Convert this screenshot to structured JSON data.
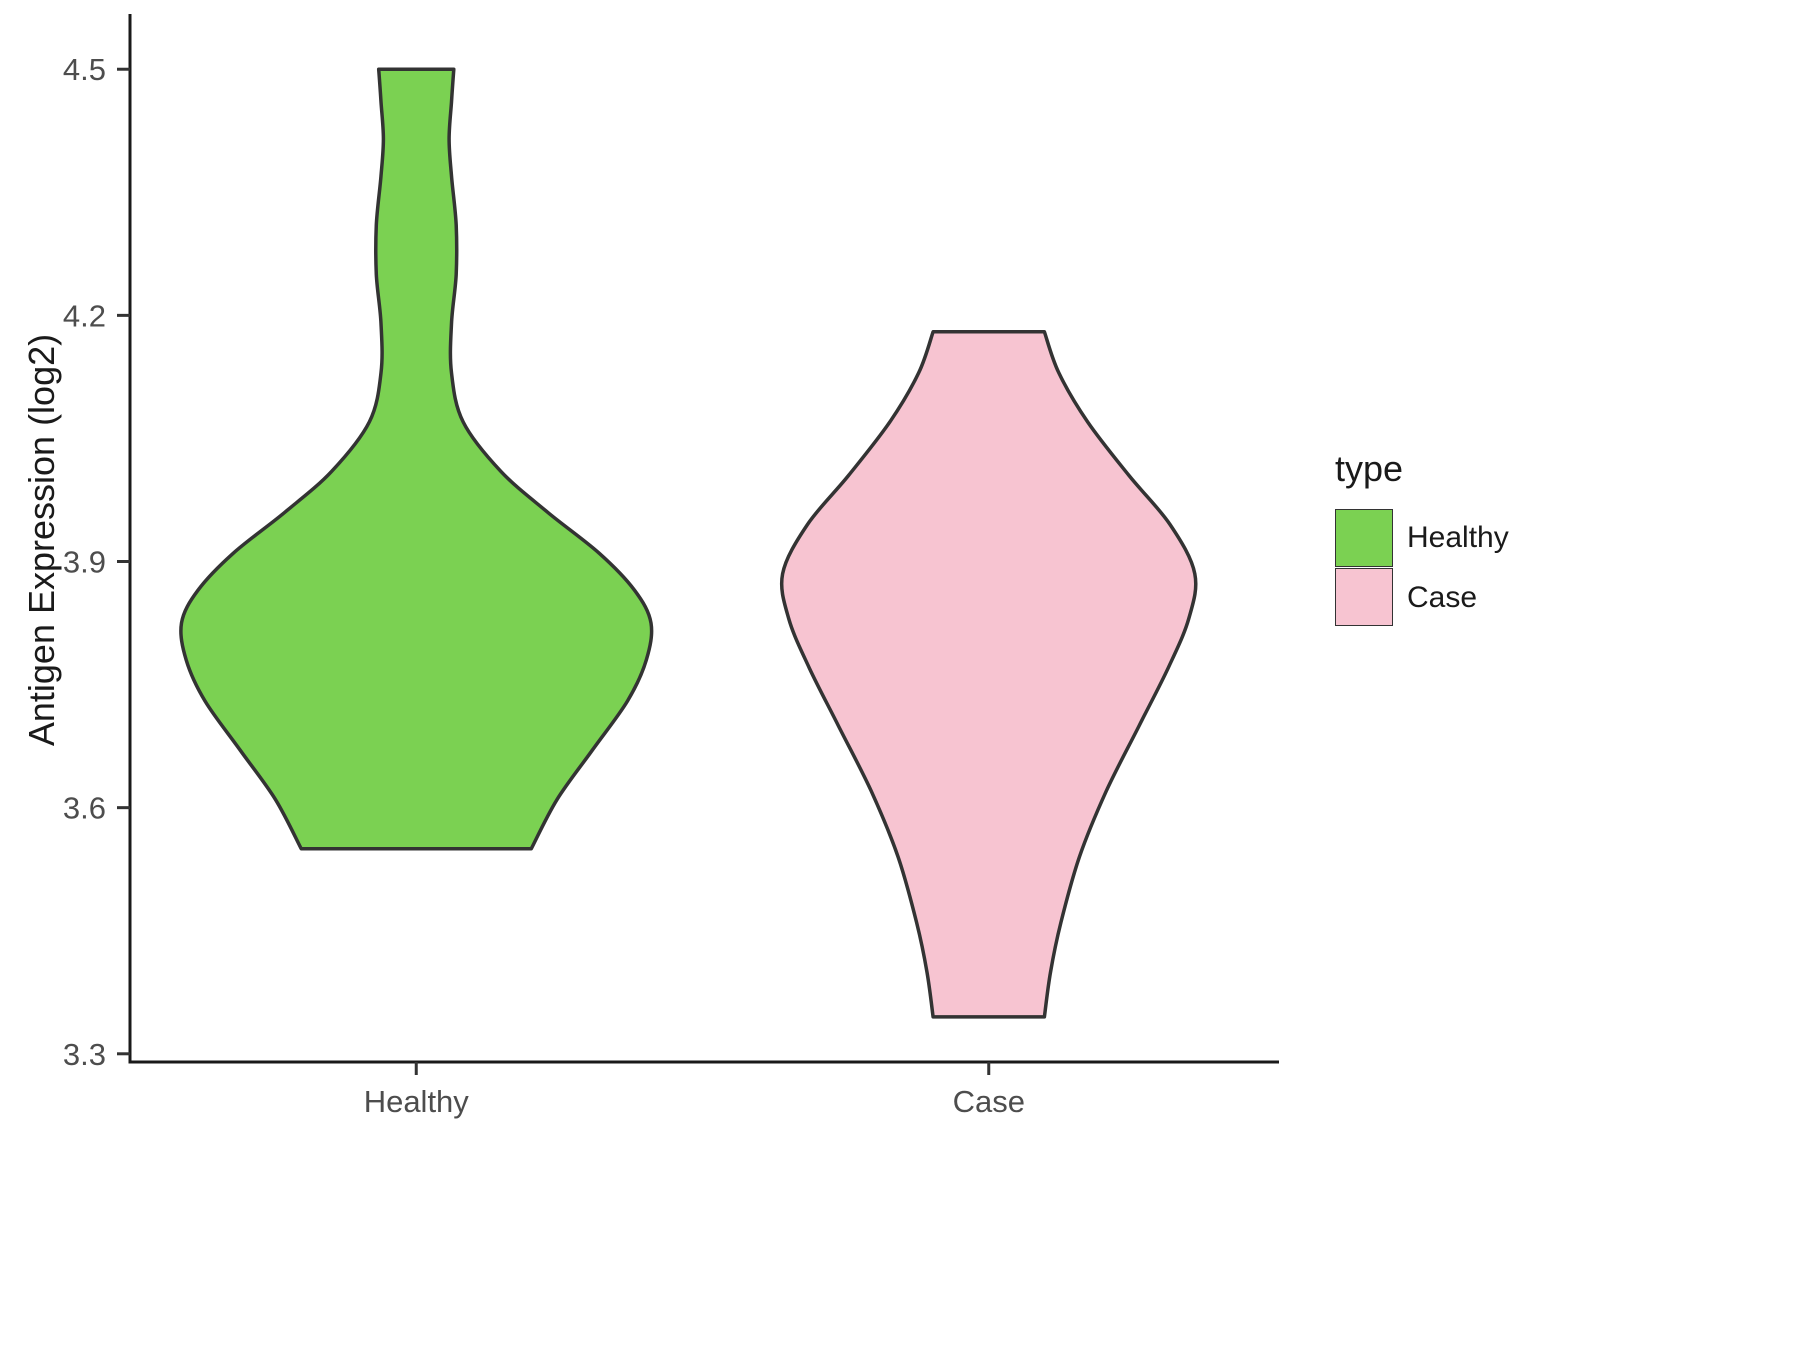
{
  "chart_data": {
    "type": "violin",
    "title": "",
    "xlabel": "",
    "ylabel": "Antigen Expression (log2)",
    "categories": [
      "Healthy",
      "Case"
    ],
    "y_ticks": [
      3.3,
      3.6,
      3.9,
      4.2,
      4.5
    ],
    "ylim": [
      3.29,
      4.56
    ],
    "grid": false,
    "legend": {
      "title": "type",
      "position": "right"
    },
    "axis_colors": {
      "line": "#1a1a1a",
      "tick_label": "#4d4d4d"
    },
    "series": [
      {
        "name": "Healthy",
        "color": "#7BD152",
        "outline": "#333333",
        "value_range": [
          3.55,
          4.5
        ],
        "max_halfwidth_frac": 0.41,
        "profile": [
          [
            4.5,
            0.16
          ],
          [
            4.46,
            0.15
          ],
          [
            4.415,
            0.14
          ],
          [
            4.37,
            0.15
          ],
          [
            4.31,
            0.17
          ],
          [
            4.25,
            0.17
          ],
          [
            4.19,
            0.15
          ],
          [
            4.13,
            0.15
          ],
          [
            4.07,
            0.2
          ],
          [
            4.01,
            0.36
          ],
          [
            3.96,
            0.56
          ],
          [
            3.91,
            0.78
          ],
          [
            3.865,
            0.93
          ],
          [
            3.825,
            1.0
          ],
          [
            3.78,
            0.98
          ],
          [
            3.73,
            0.9
          ],
          [
            3.67,
            0.75
          ],
          [
            3.61,
            0.6
          ],
          [
            3.55,
            0.49
          ]
        ]
      },
      {
        "name": "Case",
        "color": "#F7C4D1",
        "outline": "#333333",
        "value_range": [
          3.345,
          4.18
        ],
        "max_halfwidth_frac": 0.36,
        "profile": [
          [
            4.18,
            0.27
          ],
          [
            4.13,
            0.34
          ],
          [
            4.07,
            0.48
          ],
          [
            4.005,
            0.68
          ],
          [
            3.945,
            0.88
          ],
          [
            3.885,
            1.0
          ],
          [
            3.83,
            0.97
          ],
          [
            3.77,
            0.87
          ],
          [
            3.7,
            0.73
          ],
          [
            3.62,
            0.57
          ],
          [
            3.54,
            0.44
          ],
          [
            3.46,
            0.35
          ],
          [
            3.4,
            0.3
          ],
          [
            3.345,
            0.27
          ]
        ]
      }
    ]
  }
}
